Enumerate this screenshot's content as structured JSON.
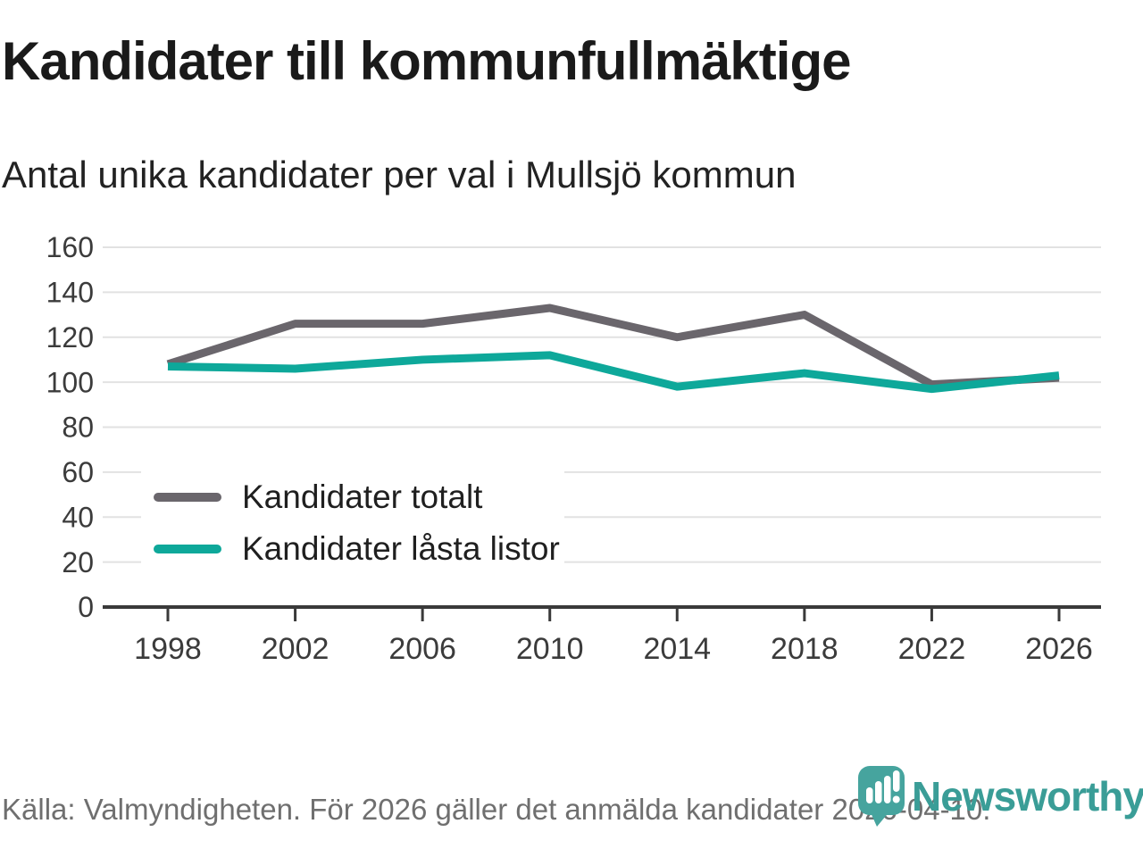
{
  "header": {
    "title": "Kandidater till kommunfullmäktige",
    "subtitle": "Antal unika kandidater per val i Mullsjö kommun"
  },
  "chart_data": {
    "type": "line",
    "title": "Kandidater till kommunfullmäktige",
    "subtitle": "Antal unika kandidater per val i Mullsjö kommun",
    "x": [
      1998,
      2002,
      2006,
      2010,
      2014,
      2018,
      2022,
      2026
    ],
    "series": [
      {
        "name": "Kandidater totalt",
        "color": "#6a666c",
        "values": [
          108,
          126,
          126,
          133,
          120,
          130,
          99,
          102
        ]
      },
      {
        "name": "Kandidater låsta listor",
        "color": "#0ea89a",
        "values": [
          107,
          106,
          110,
          112,
          98,
          104,
          97,
          103
        ]
      }
    ],
    "xlabel": "",
    "ylabel": "",
    "ylim": [
      0,
      160
    ],
    "yticks": [
      0,
      20,
      40,
      60,
      80,
      100,
      120,
      140,
      160
    ],
    "grid": "horizontal",
    "grid_color": "#e2e2e2",
    "axis_color": "#3a3a3a",
    "tick_text_color": "#3b3b3b",
    "legend_position": "inside-lower-left"
  },
  "footer": {
    "source": "Källa: Valmyndigheten. För 2026 gäller det anmälda kandidater 2026-04-10."
  },
  "logo": {
    "text": "Newsworthy",
    "icon": "newsworthy-pin-barchart-icon",
    "wordmark_color": "#3a9d97",
    "icon_color": "#46a49e"
  }
}
